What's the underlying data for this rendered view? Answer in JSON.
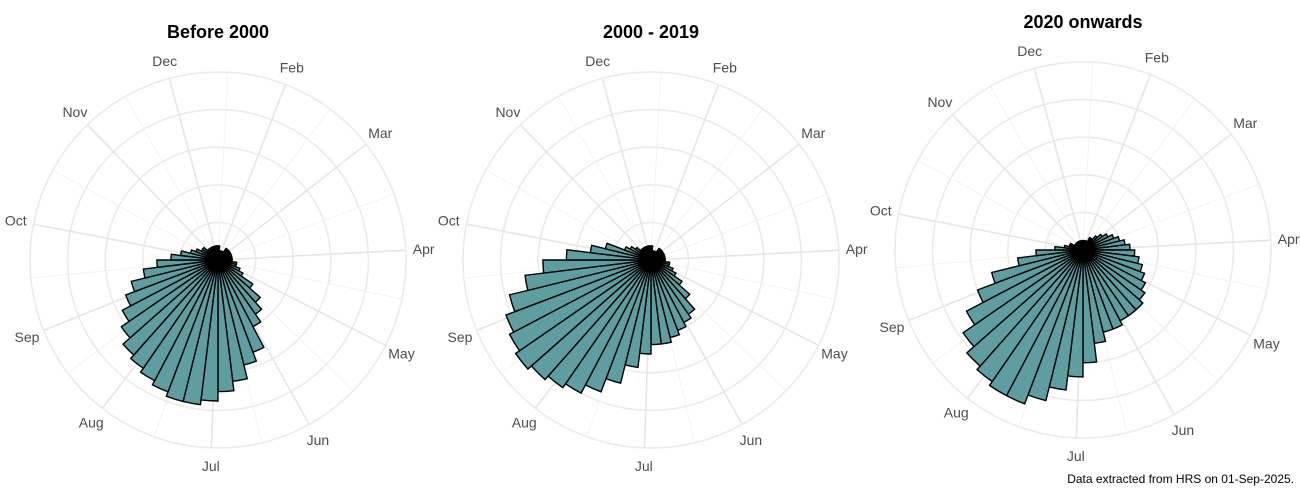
{
  "chart_data": [
    {
      "type": "polar-bar",
      "title": "Before 2000",
      "angular_labels": [
        "Dec",
        "Feb",
        "Mar",
        "Apr",
        "May",
        "Jun",
        "Jul",
        "Aug",
        "Sep",
        "Oct",
        "Nov"
      ],
      "bins": 52,
      "values": [
        3,
        2,
        2,
        2,
        2,
        3,
        3,
        3,
        3,
        3,
        3,
        3,
        3,
        3,
        4,
        4,
        5,
        6,
        9,
        12,
        14,
        16,
        21,
        23,
        26,
        28,
        30,
        31,
        31,
        30,
        29,
        28,
        27,
        25,
        23,
        21,
        19,
        16,
        13,
        10,
        8,
        6,
        5,
        4,
        4,
        3,
        3,
        3,
        3,
        3,
        3,
        3
      ],
      "rlim": [
        0,
        40
      ],
      "grid": true,
      "bar_color": "#5F9EA0"
    },
    {
      "type": "polar-bar",
      "title": "2000 - 2019",
      "angular_labels": [
        "Dec",
        "Feb",
        "Mar",
        "Apr",
        "May",
        "Jun",
        "Jul",
        "Aug",
        "Sep",
        "Oct",
        "Nov"
      ],
      "bins": 52,
      "values": [
        3,
        2,
        2,
        2,
        2,
        3,
        3,
        3,
        3,
        3,
        3,
        3,
        3,
        3,
        4,
        4,
        5,
        6,
        8,
        11,
        14,
        15,
        16,
        17,
        18,
        18,
        20,
        23,
        27,
        30,
        32,
        33,
        34,
        35,
        34,
        33,
        31,
        27,
        23,
        18,
        13,
        10,
        6,
        5,
        4,
        3,
        3,
        3,
        3,
        3,
        3,
        3
      ],
      "rlim": [
        0,
        40
      ],
      "grid": true,
      "bar_color": "#5F9EA0"
    },
    {
      "type": "polar-bar",
      "title": "2020 onwards",
      "angular_labels": [
        "Dec",
        "Feb",
        "Mar",
        "Apr",
        "May",
        "Jun",
        "Jul",
        "Aug",
        "Sep",
        "Oct",
        "Nov"
      ],
      "bins": 52,
      "values": [
        2,
        2,
        2,
        2,
        3,
        3,
        4,
        5,
        6,
        7,
        8,
        9,
        10,
        11,
        12,
        13,
        14,
        15,
        16,
        17,
        17,
        17,
        18,
        18,
        20,
        24,
        27,
        30,
        33,
        35,
        35,
        34,
        33,
        31,
        28,
        24,
        20,
        14,
        10,
        6,
        4,
        3,
        3,
        2,
        2,
        2,
        2,
        2,
        2,
        2,
        2,
        2
      ],
      "rlim": [
        0,
        40
      ],
      "grid": true,
      "bar_color": "#5F9EA0"
    }
  ],
  "caption": "Data extracted from HRS on 01-Sep-2025."
}
